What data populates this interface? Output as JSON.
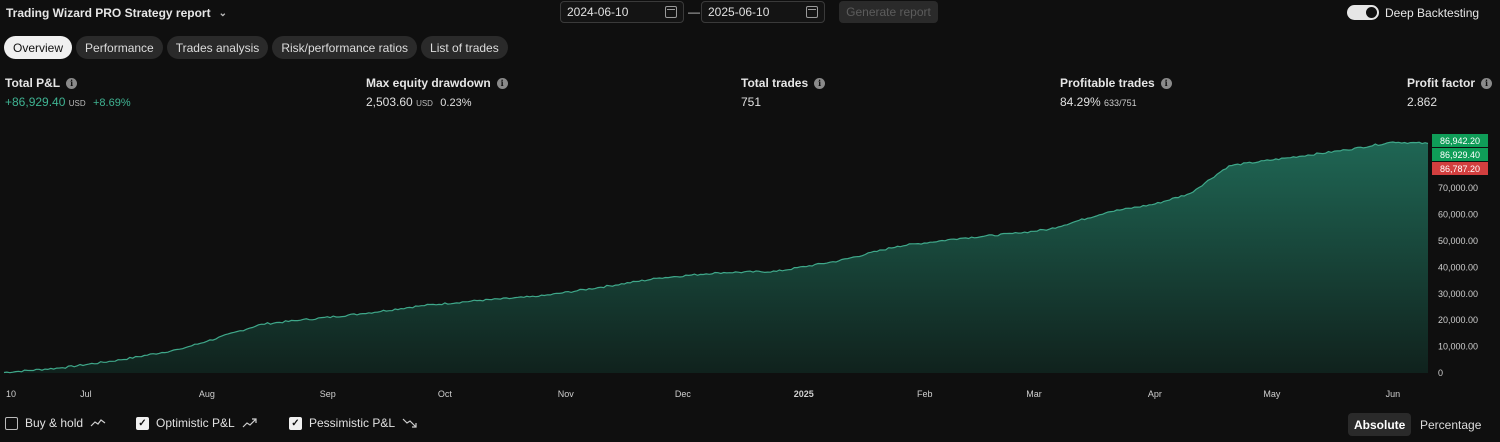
{
  "header": {
    "title": "Trading Wizard PRO Strategy report",
    "date_from": "2024-06-10",
    "date_sep": "—",
    "date_to": "2025-06-10",
    "generate_label": "Generate report",
    "deep_backtesting_label": "Deep Backtesting",
    "deep_backtesting_on": true
  },
  "tabs": [
    "Overview",
    "Performance",
    "Trades analysis",
    "Risk/performance ratios",
    "List of trades"
  ],
  "active_tab": 0,
  "metrics": {
    "total_pl": {
      "label": "Total P&L",
      "value": "+86,929.40",
      "unit": "USD",
      "pct": "+8.69%"
    },
    "max_dd": {
      "label": "Max equity drawdown",
      "value": "2,503.60",
      "unit": "USD",
      "pct": "0.23%"
    },
    "total_trades": {
      "label": "Total trades",
      "value": "751"
    },
    "profitable": {
      "label": "Profitable trades",
      "value": "84.29%",
      "sub": "633/751"
    },
    "profit_factor": {
      "label": "Profit factor",
      "value": "2.862"
    }
  },
  "chart_data": {
    "type": "area",
    "x_labels": [
      "10",
      "Jul",
      "Aug",
      "Sep",
      "Oct",
      "Nov",
      "Dec",
      "2025",
      "Feb",
      "Mar",
      "Apr",
      "May",
      "Jun"
    ],
    "y_ticks": [
      "0",
      "10,000.00",
      "20,000.00",
      "30,000.00",
      "40,000.00",
      "50,000.00",
      "60,000.00",
      "70,000.00"
    ],
    "ylim": [
      0,
      88500
    ],
    "series": [
      {
        "x": [
          "2024-06-10",
          "2024-06-25",
          "2024-07-10",
          "2024-07-25",
          "2024-08-01",
          "2024-08-15",
          "2024-08-25",
          "2024-09-10",
          "2024-09-25",
          "2024-10-10",
          "2024-10-25",
          "2024-11-10",
          "2024-11-25",
          "2024-12-10",
          "2024-12-25",
          "2025-01-10",
          "2025-01-25",
          "2025-02-10",
          "2025-02-25",
          "2025-03-05",
          "2025-03-20",
          "2025-04-01",
          "2025-04-10",
          "2025-04-20",
          "2025-05-05",
          "2025-05-20",
          "2025-06-01",
          "2025-06-10"
        ],
        "values": [
          200,
          2000,
          5000,
          9000,
          12000,
          18500,
          20000,
          22500,
          25500,
          27500,
          29000,
          32500,
          36000,
          38000,
          38500,
          42500,
          48000,
          51000,
          53000,
          54500,
          61000,
          64000,
          68000,
          78500,
          81500,
          84500,
          87500,
          86929
        ]
      }
    ],
    "markers": {
      "optimistic": "86,942.20",
      "current": "86,929.40",
      "pessimistic": "86,787.20"
    }
  },
  "legend": {
    "buy_hold": "Buy & hold",
    "optimistic": "Optimistic P&L",
    "pessimistic": "Pessimistic P&L",
    "buy_hold_checked": false,
    "optimistic_checked": true,
    "pessimistic_checked": true
  },
  "view_modes": {
    "absolute": "Absolute",
    "percentage": "Percentage"
  },
  "colors": {
    "accent_green": "#3fb392",
    "area_fill": "#1c5a4c",
    "badge_green": "#0f9d58",
    "badge_red": "#d23f3f"
  }
}
